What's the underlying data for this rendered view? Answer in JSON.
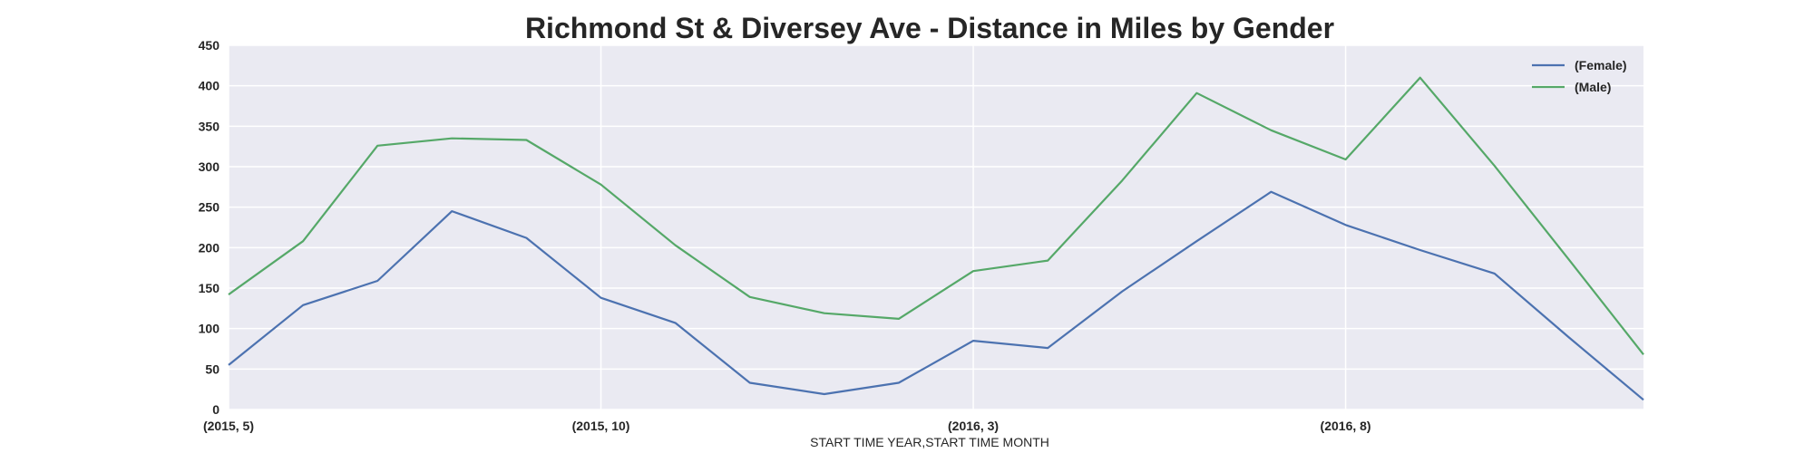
{
  "chart_data": {
    "type": "line",
    "title": "Richmond St & Diversey Ave - Distance in Miles by Gender",
    "xlabel": "START TIME YEAR,START TIME MONTH",
    "ylabel": "",
    "ylim": [
      0,
      450
    ],
    "yticks": [
      0,
      50,
      100,
      150,
      200,
      250,
      300,
      350,
      400,
      450
    ],
    "x": [
      "(2015, 5)",
      "(2015, 6)",
      "(2015, 7)",
      "(2015, 8)",
      "(2015, 9)",
      "(2015, 10)",
      "(2015, 11)",
      "(2015, 12)",
      "(2016, 1)",
      "(2016, 2)",
      "(2016, 3)",
      "(2016, 4)",
      "(2016, 5)",
      "(2016, 6)",
      "(2016, 7)",
      "(2016, 8)",
      "(2016, 9)",
      "(2016, 10)",
      "(2016, 11)",
      "(2016, 12)"
    ],
    "xtick_labels": [
      "(2015, 5)",
      "(2015, 10)",
      "(2016, 3)",
      "(2016, 8)"
    ],
    "grid": true,
    "legend_position": "top-right",
    "series": [
      {
        "name": "(Female)",
        "color": "#4c72b0",
        "values": [
          55,
          129,
          159,
          245,
          212,
          138,
          107,
          33,
          19,
          33,
          85,
          76,
          146,
          208,
          269,
          228,
          197,
          168,
          89,
          12
        ]
      },
      {
        "name": "(Male)",
        "color": "#55a868",
        "values": [
          142,
          208,
          326,
          335,
          333,
          278,
          203,
          139,
          119,
          112,
          171,
          184,
          283,
          391,
          345,
          309,
          410,
          301,
          185,
          68
        ]
      }
    ]
  }
}
